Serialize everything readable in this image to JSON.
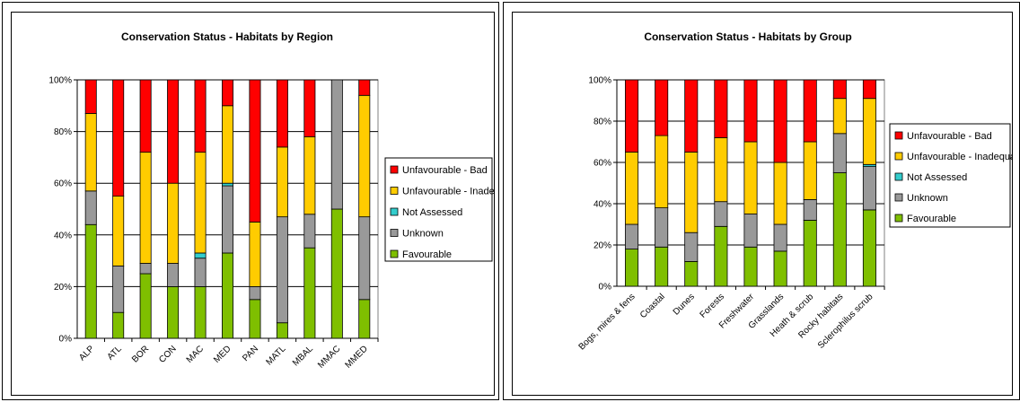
{
  "chart_data": [
    {
      "type": "bar",
      "stacked": true,
      "title": "Conservation Status - Habitats by Region",
      "categories": [
        "ALP",
        "ATL",
        "BOR",
        "CON",
        "MAC",
        "MED",
        "PAN",
        "MATL",
        "MBAL",
        "MMAC",
        "MMED"
      ],
      "series": [
        {
          "name": "Favourable",
          "color": "#7fbf00",
          "values": [
            44,
            10,
            25,
            20,
            20,
            33,
            15,
            6,
            35,
            50,
            15
          ]
        },
        {
          "name": "Unknown",
          "color": "#999999",
          "values": [
            13,
            18,
            4,
            9,
            11,
            26,
            5,
            41,
            13,
            50,
            32
          ]
        },
        {
          "name": "Not Assessed",
          "color": "#33cccc",
          "values": [
            0,
            0,
            0,
            0,
            2,
            1,
            0,
            0,
            0,
            0,
            0
          ]
        },
        {
          "name": "Unfavourable - Inadequate",
          "color": "#ffcc00",
          "values": [
            30,
            27,
            43,
            31,
            39,
            30,
            25,
            27,
            30,
            0,
            47
          ]
        },
        {
          "name": "Unfavourable - Bad",
          "color": "#ff0000",
          "values": [
            13,
            45,
            28,
            40,
            28,
            10,
            55,
            26,
            22,
            0,
            6
          ]
        }
      ],
      "yticks": [
        "0%",
        "20%",
        "40%",
        "60%",
        "80%",
        "100%"
      ],
      "ylim": [
        0,
        100
      ],
      "grid": true,
      "legend": "right"
    },
    {
      "type": "bar",
      "stacked": true,
      "title": "Conservation Status - Habitats by Group",
      "categories": [
        "Bogs, mires & fens",
        "Coastal",
        "Dunes",
        "Forests",
        "Freshwater",
        "Grasslands",
        "Heath & scrub",
        "Rocky habitats",
        "Sclerophilus scrub"
      ],
      "series": [
        {
          "name": "Favourable",
          "color": "#7fbf00",
          "values": [
            18,
            19,
            12,
            29,
            19,
            17,
            32,
            55,
            37
          ]
        },
        {
          "name": "Unknown",
          "color": "#999999",
          "values": [
            12,
            19,
            14,
            12,
            16,
            13,
            10,
            19,
            21
          ]
        },
        {
          "name": "Not Assessed",
          "color": "#33cccc",
          "values": [
            0,
            0,
            0,
            0,
            0,
            0,
            0,
            0,
            1
          ]
        },
        {
          "name": "Unfavourable - Inadequate",
          "color": "#ffcc00",
          "values": [
            35,
            35,
            39,
            31,
            35,
            30,
            28,
            17,
            32
          ]
        },
        {
          "name": "Unfavourable - Bad",
          "color": "#ff0000",
          "values": [
            35,
            27,
            35,
            28,
            30,
            40,
            30,
            9,
            9
          ]
        }
      ],
      "yticks": [
        "0%",
        "20%",
        "40%",
        "60%",
        "80%",
        "100%"
      ],
      "ylim": [
        0,
        100
      ],
      "grid": true,
      "legend": "right"
    }
  ]
}
